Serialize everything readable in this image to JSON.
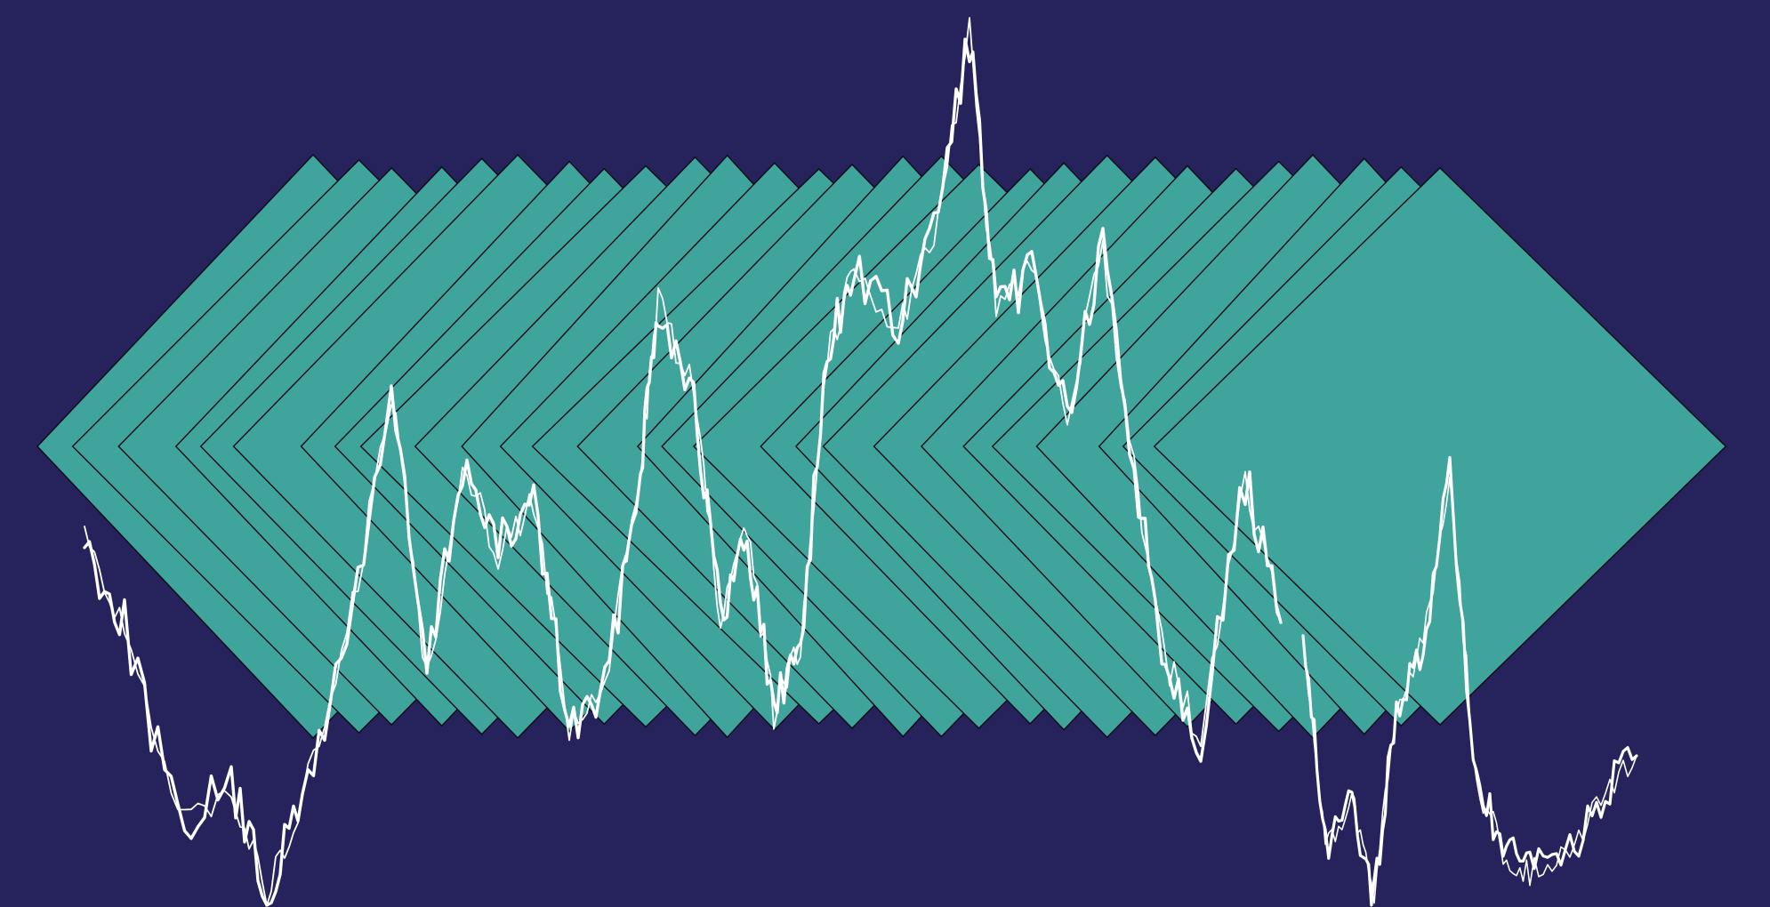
{
  "scene": {
    "background_color": "#26225c",
    "diamond_fill": "#3fa49c",
    "diamond_outline": "#0a0a14",
    "wave_color": "#ffffff",
    "diamond_count": 28,
    "wave_seed": 7
  }
}
